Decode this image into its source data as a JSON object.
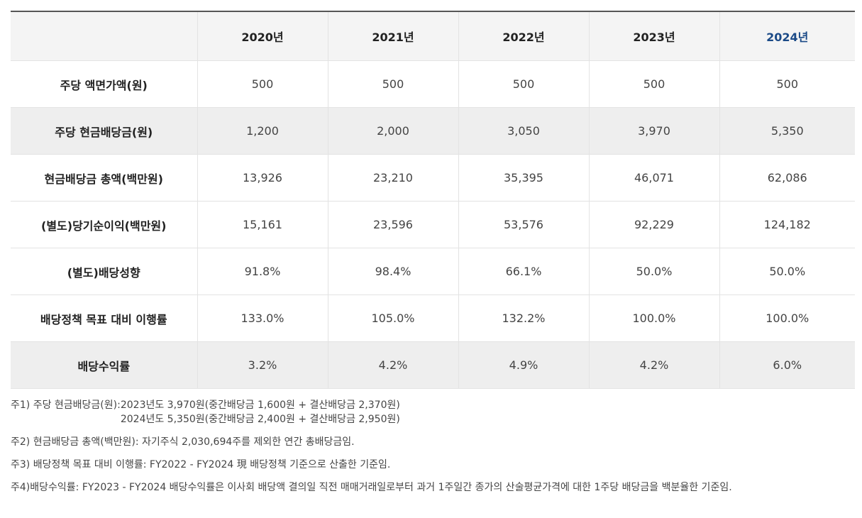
{
  "table": {
    "headers": [
      "",
      "2020년",
      "2021년",
      "2022년",
      "2023년",
      "2024년"
    ],
    "rows": [
      {
        "label": "주당 액면가액(원)",
        "values": [
          "500",
          "500",
          "500",
          "500",
          "500"
        ],
        "shaded": false
      },
      {
        "label": "주당 현금배당금(원)",
        "values": [
          "1,200",
          "2,000",
          "3,050",
          "3,970",
          "5,350"
        ],
        "shaded": true
      },
      {
        "label": "현금배당금 총액(백만원)",
        "values": [
          "13,926",
          "23,210",
          "35,395",
          "46,071",
          "62,086"
        ],
        "shaded": false
      },
      {
        "label": "(별도)당기순이익(백만원)",
        "values": [
          "15,161",
          "23,596",
          "53,576",
          "92,229",
          "124,182"
        ],
        "shaded": false
      },
      {
        "label": "(별도)배당성향",
        "values": [
          "91.8%",
          "98.4%",
          "66.1%",
          "50.0%",
          "50.0%"
        ],
        "shaded": false
      },
      {
        "label": "배당정책 목표 대비 이행률",
        "values": [
          "133.0%",
          "105.0%",
          "132.2%",
          "100.0%",
          "100.0%"
        ],
        "shaded": false
      },
      {
        "label": "배당수익률",
        "values": [
          "3.2%",
          "4.2%",
          "4.9%",
          "4.2%",
          "6.0%"
        ],
        "shaded": true
      }
    ],
    "highlight_color": "#1b4a87"
  },
  "notes": {
    "n1_label": "주1) 주당 현금배당금(원): ",
    "n1_line1": "2023년도 3,970원(중간배당금 1,600원 + 결산배당금 2,370원)",
    "n1_line2": "2024년도 5,350원(중간배당금 2,400원 + 결산배당금 2,950원)",
    "n2": "주2) 현금배당금 총액(백만원): 자기주식 2,030,694주를 제외한 연간 총배당금임.",
    "n3": "주3) 배당정책 목표 대비 이행률: FY2022 - FY2024 現 배당정책 기준으로 산출한 기준임.",
    "n4_label": "주4) ",
    "n4_body": "배당수익률: FY2023 - FY2024 배당수익률은 이사회 배당액 결의일 직전 매매거래일로부터 과거 1주일간 종가의 산술평균가격에 대한 1주당 배당금을 백분율한 기준임."
  }
}
